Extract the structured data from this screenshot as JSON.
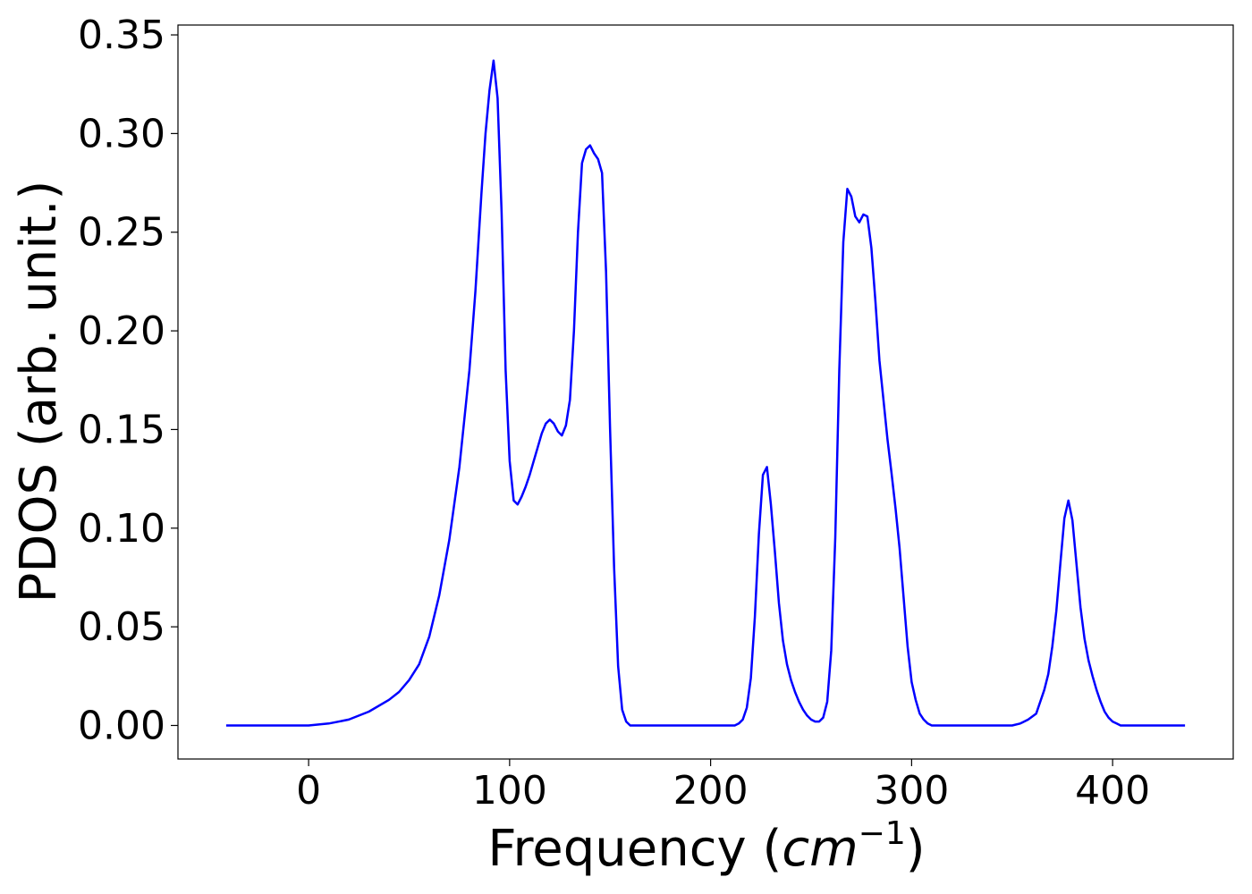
{
  "chart_data": {
    "type": "line",
    "title": "",
    "xlabel": "Frequency",
    "xlabel_unit": "cm",
    "xlabel_unit_exponent": "−1",
    "ylabel": "PDOS (arb. unit.)",
    "xlim": [
      -65,
      460
    ],
    "ylim": [
      -0.017,
      0.355
    ],
    "xticks": [
      0,
      100,
      200,
      300,
      400
    ],
    "xtick_labels": [
      "0",
      "100",
      "200",
      "300",
      "400"
    ],
    "yticks": [
      0.0,
      0.05,
      0.1,
      0.15,
      0.2,
      0.25,
      0.3,
      0.35
    ],
    "ytick_labels": [
      "0.00",
      "0.05",
      "0.10",
      "0.15",
      "0.20",
      "0.25",
      "0.30",
      "0.35"
    ],
    "grid": false,
    "legend": "none",
    "line_color": "#0000ff",
    "series": [
      {
        "x": [
          -41,
          -20,
          0,
          10,
          20,
          30,
          40,
          45,
          50,
          55,
          60,
          65,
          70,
          75,
          80,
          83,
          86,
          88,
          90,
          92,
          94,
          96,
          98,
          100,
          102,
          104,
          106,
          108,
          110,
          112,
          114,
          116,
          118,
          120,
          122,
          124,
          126,
          128,
          130,
          132,
          134,
          136,
          138,
          140,
          142,
          144,
          146,
          148,
          150,
          152,
          154,
          156,
          158,
          160,
          162,
          164,
          166,
          168,
          170,
          190,
          210,
          212,
          214,
          216,
          218,
          220,
          222,
          224,
          226,
          228,
          230,
          232,
          234,
          236,
          238,
          240,
          242,
          244,
          246,
          248,
          250,
          252,
          254,
          256,
          258,
          260,
          262,
          264,
          266,
          268,
          270,
          272,
          274,
          276,
          278,
          280,
          282,
          284,
          286,
          288,
          290,
          292,
          294,
          296,
          298,
          300,
          302,
          304,
          306,
          308,
          310,
          312,
          314,
          316,
          318,
          320,
          340,
          350,
          354,
          358,
          362,
          364,
          366,
          368,
          370,
          372,
          374,
          376,
          378,
          380,
          382,
          384,
          386,
          388,
          390,
          392,
          394,
          396,
          398,
          400,
          402,
          404,
          406,
          410,
          436
        ],
        "y": [
          0.0,
          0.0,
          0.0,
          0.001,
          0.003,
          0.007,
          0.013,
          0.017,
          0.023,
          0.031,
          0.045,
          0.066,
          0.094,
          0.131,
          0.18,
          0.22,
          0.27,
          0.3,
          0.322,
          0.337,
          0.318,
          0.26,
          0.18,
          0.134,
          0.114,
          0.112,
          0.116,
          0.121,
          0.127,
          0.134,
          0.141,
          0.148,
          0.153,
          0.155,
          0.153,
          0.149,
          0.147,
          0.152,
          0.165,
          0.2,
          0.25,
          0.285,
          0.292,
          0.294,
          0.29,
          0.287,
          0.28,
          0.23,
          0.15,
          0.08,
          0.03,
          0.008,
          0.002,
          0.0,
          0.0,
          0.0,
          0.0,
          0.0,
          0.0,
          0.0,
          0.0,
          0.0,
          0.001,
          0.003,
          0.009,
          0.024,
          0.055,
          0.097,
          0.127,
          0.131,
          0.112,
          0.088,
          0.062,
          0.043,
          0.031,
          0.023,
          0.017,
          0.012,
          0.008,
          0.005,
          0.003,
          0.002,
          0.002,
          0.004,
          0.012,
          0.038,
          0.095,
          0.18,
          0.245,
          0.272,
          0.268,
          0.258,
          0.255,
          0.259,
          0.258,
          0.242,
          0.215,
          0.185,
          0.165,
          0.145,
          0.128,
          0.11,
          0.09,
          0.065,
          0.04,
          0.022,
          0.013,
          0.006,
          0.003,
          0.001,
          0.0,
          0.0,
          0.0,
          0.0,
          0.0,
          0.0,
          0.0,
          0.0,
          0.001,
          0.003,
          0.006,
          0.012,
          0.018,
          0.026,
          0.04,
          0.058,
          0.082,
          0.105,
          0.114,
          0.104,
          0.082,
          0.06,
          0.044,
          0.033,
          0.025,
          0.018,
          0.012,
          0.007,
          0.004,
          0.002,
          0.001,
          0.0,
          0.0,
          0.0,
          0.0
        ]
      }
    ]
  }
}
